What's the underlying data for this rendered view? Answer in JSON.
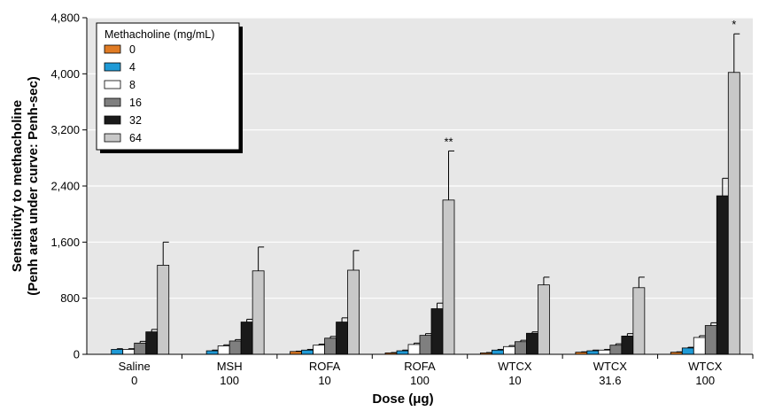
{
  "chart_data": {
    "type": "bar",
    "title": "",
    "xlabel": "Dose (μg)",
    "ylabel_lines": [
      "Sensitivity to methacholine",
      "(Penh area under curve: Penh-sec)"
    ],
    "ylim": [
      0,
      4800
    ],
    "yticks": [
      "0",
      "800",
      "1,600",
      "2,400",
      "3,200",
      "4,000",
      "4,800"
    ],
    "ytick_values": [
      0,
      800,
      1600,
      2400,
      3200,
      4000,
      4800
    ],
    "grid": true,
    "legend_placement": "top-left",
    "legend_title": "Methacholine (mg/mL)",
    "categories": [
      {
        "line1": "Saline",
        "line2": "0"
      },
      {
        "line1": "MSH",
        "line2": "100"
      },
      {
        "line1": "ROFA",
        "line2": "10"
      },
      {
        "line1": "ROFA",
        "line2": "100"
      },
      {
        "line1": "WTCX",
        "line2": "10"
      },
      {
        "line1": "WTCX",
        "line2": "31.6"
      },
      {
        "line1": "WTCX",
        "line2": "100"
      }
    ],
    "series": [
      {
        "name": "0",
        "color": "#e07b24",
        "values": [
          0,
          0,
          40,
          20,
          20,
          30,
          30
        ],
        "errors": [
          0,
          0,
          5,
          5,
          5,
          5,
          5
        ]
      },
      {
        "name": "4",
        "color": "#1f9ad6",
        "values": [
          70,
          50,
          60,
          50,
          60,
          50,
          90
        ],
        "errors": [
          10,
          10,
          10,
          10,
          10,
          10,
          10
        ]
      },
      {
        "name": "8",
        "color": "#ffffff",
        "values": [
          70,
          120,
          130,
          140,
          110,
          60,
          240
        ],
        "errors": [
          10,
          15,
          15,
          20,
          15,
          10,
          25
        ]
      },
      {
        "name": "16",
        "color": "#7f7f7f",
        "values": [
          160,
          190,
          230,
          270,
          180,
          130,
          410
        ],
        "errors": [
          25,
          20,
          25,
          25,
          20,
          20,
          40
        ]
      },
      {
        "name": "32",
        "color": "#1a1a1a",
        "values": [
          320,
          460,
          460,
          650,
          300,
          260,
          2260
        ],
        "errors": [
          35,
          40,
          60,
          80,
          20,
          35,
          250
        ]
      },
      {
        "name": "64",
        "color": "#c8c8c8",
        "values": [
          1270,
          1190,
          1200,
          2200,
          990,
          950,
          4020
        ],
        "errors": [
          330,
          340,
          280,
          700,
          110,
          150,
          550
        ]
      }
    ],
    "annotations": [
      {
        "category_index": 3,
        "series_index": 5,
        "text": "**"
      },
      {
        "category_index": 6,
        "series_index": 5,
        "text": "*"
      }
    ]
  }
}
